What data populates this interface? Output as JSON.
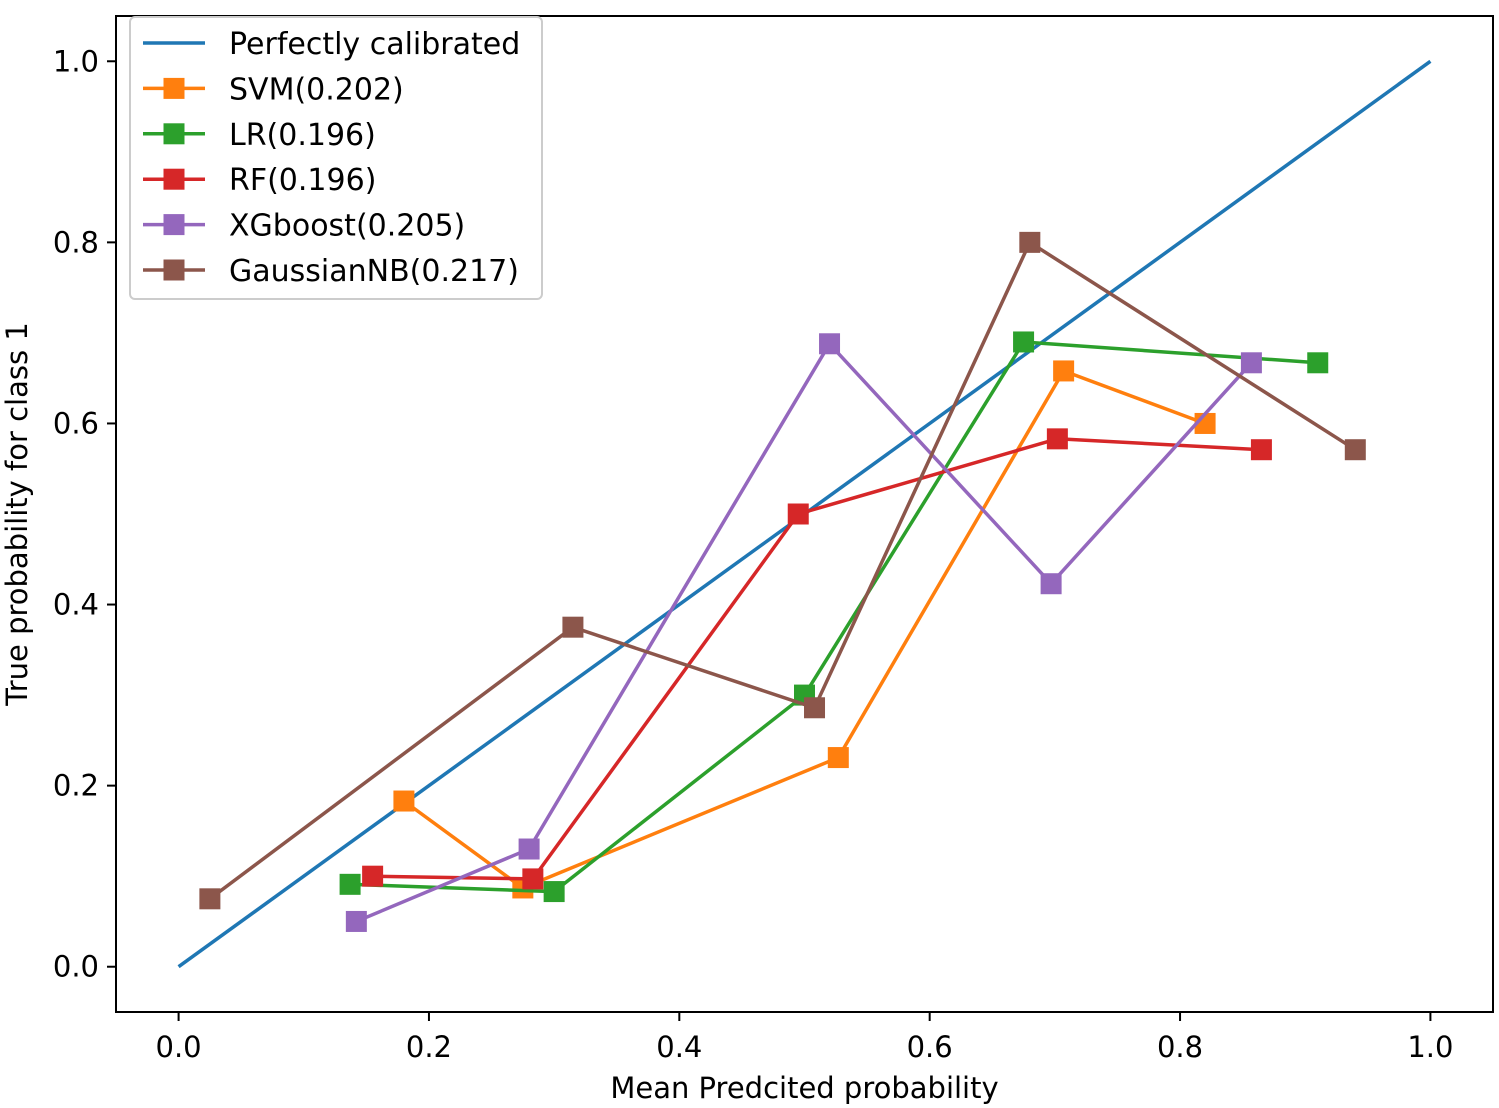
{
  "chart_data": {
    "type": "line",
    "xlabel": "Mean Predcited probability",
    "ylabel": "True probability for class 1",
    "xlim": [
      -0.05,
      1.05
    ],
    "ylim": [
      -0.05,
      1.05
    ],
    "xticks": [
      0.0,
      0.2,
      0.4,
      0.6,
      0.8,
      1.0
    ],
    "yticks": [
      0.0,
      0.2,
      0.4,
      0.6,
      0.8,
      1.0
    ],
    "xtick_labels": [
      "0.0",
      "0.2",
      "0.4",
      "0.6",
      "0.8",
      "1.0"
    ],
    "ytick_labels": [
      "0.0",
      "0.2",
      "0.4",
      "0.6",
      "0.8",
      "1.0"
    ],
    "grid": false,
    "legend_position": "top-left",
    "series": [
      {
        "name": "Perfectly calibrated",
        "color": "#1f77b4",
        "marker": "none",
        "x": [
          0.0,
          1.0
        ],
        "y": [
          0.0,
          1.0
        ]
      },
      {
        "name": "SVM(0.202)",
        "color": "#ff7f0e",
        "marker": "square",
        "x": [
          0.18,
          0.275,
          0.527,
          0.707,
          0.82
        ],
        "y": [
          0.183,
          0.087,
          0.231,
          0.658,
          0.6
        ]
      },
      {
        "name": "LR(0.196)",
        "color": "#2ca02c",
        "marker": "square",
        "x": [
          0.137,
          0.3,
          0.5,
          0.675,
          0.91
        ],
        "y": [
          0.091,
          0.083,
          0.3,
          0.69,
          0.667
        ]
      },
      {
        "name": "RF(0.196)",
        "color": "#d62728",
        "marker": "square",
        "x": [
          0.155,
          0.283,
          0.495,
          0.702,
          0.865
        ],
        "y": [
          0.1,
          0.097,
          0.5,
          0.583,
          0.571
        ]
      },
      {
        "name": "XGboost(0.205)",
        "color": "#9467bd",
        "marker": "square",
        "x": [
          0.142,
          0.28,
          0.52,
          0.697,
          0.857
        ],
        "y": [
          0.05,
          0.13,
          0.688,
          0.423,
          0.667
        ]
      },
      {
        "name": "GaussianNB(0.217)",
        "color": "#8c564b",
        "marker": "square",
        "x": [
          0.025,
          0.315,
          0.508,
          0.68,
          0.94
        ],
        "y": [
          0.075,
          0.375,
          0.286,
          0.8,
          0.571
        ]
      }
    ]
  }
}
